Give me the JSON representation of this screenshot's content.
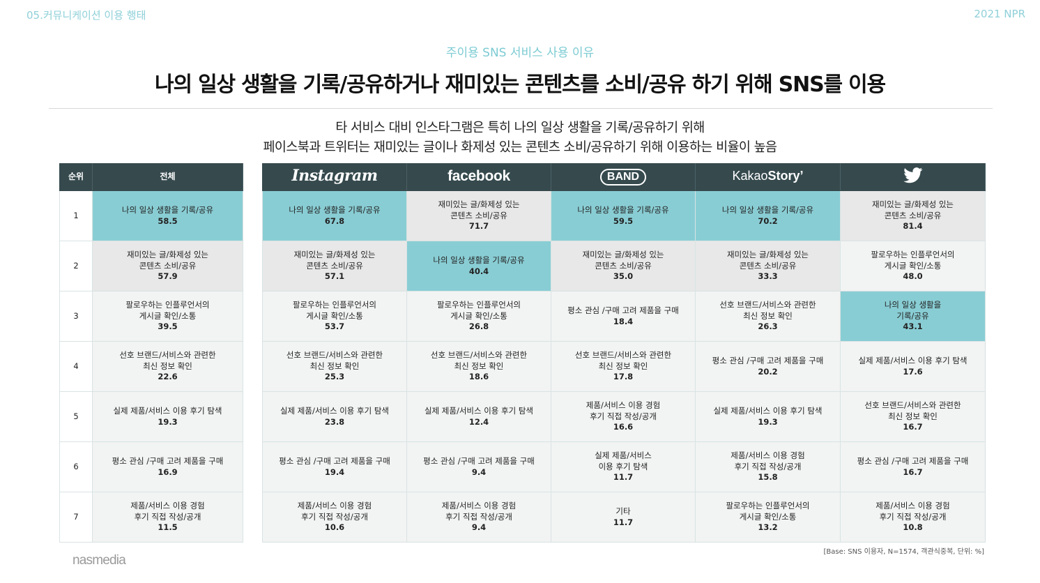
{
  "header": {
    "section": "05.커뮤니케이션 이용 행태",
    "year": "2021 NPR"
  },
  "subtitle": "주이용 SNS 서비스 사용 이유",
  "headline": "나의 일상 생활을 기록/공유하거나 재미있는 콘텐츠를 소비/공유 하기 위해 SNS를 이용",
  "description": [
    "타 서비스 대비 인스타그램은 특히 나의 일상 생활을 기록/공유하기 위해",
    "페이스북과 트위터는 재미있는 글이나 화제성 있는 콘텐츠 소비/공유하기 위해 이용하는 비율이 높음"
  ],
  "left_table": {
    "headers": {
      "rank": "순위",
      "total": "전체"
    },
    "rows": [
      {
        "rank": "1",
        "label": "나의 일상 생활을 기록/공유",
        "value": "58.5",
        "style": "hl"
      },
      {
        "rank": "2",
        "label": "재미있는 글/화제성 있는\n콘텐츠 소비/공유",
        "value": "57.9",
        "style": "gray"
      },
      {
        "rank": "3",
        "label": "팔로우하는 인플루언서의\n게시글 확인/소통",
        "value": "39.5",
        "style": ""
      },
      {
        "rank": "4",
        "label": "선호 브랜드/서비스와 관련한\n최신 정보 확인",
        "value": "22.6",
        "style": ""
      },
      {
        "rank": "5",
        "label": "실제 제품/서비스 이용 후기 탐색",
        "value": "19.3",
        "style": ""
      },
      {
        "rank": "6",
        "label": "평소 관심 /구매 고려 제품을 구매",
        "value": "16.9",
        "style": ""
      },
      {
        "rank": "7",
        "label": "제품/서비스 이용 경험\n후기 직접 작성/공개",
        "value": "11.5",
        "style": ""
      }
    ]
  },
  "right_table": {
    "headers": [
      {
        "name": "Instagram",
        "icon": "instagram-logo"
      },
      {
        "name": "facebook",
        "icon": "facebook-logo"
      },
      {
        "name": "BAND",
        "icon": "band-logo"
      },
      {
        "name_a": "Kakao",
        "name_b": "Story",
        "icon": "kakaostory-logo"
      },
      {
        "name": "",
        "icon": "twitter-bird-icon"
      }
    ],
    "rows": [
      [
        {
          "label": "나의 일상 생활을 기록/공유",
          "value": "67.8",
          "style": "hl"
        },
        {
          "label": "재미있는 글/화제성 있는\n콘텐츠 소비/공유",
          "value": "71.7",
          "style": "gray"
        },
        {
          "label": "나의 일상 생활을 기록/공유",
          "value": "59.5",
          "style": "hl"
        },
        {
          "label": "나의 일상 생활을 기록/공유",
          "value": "70.2",
          "style": "hl"
        },
        {
          "label": "재미있는 글/화제성 있는\n콘텐츠 소비/공유",
          "value": "81.4",
          "style": "gray"
        }
      ],
      [
        {
          "label": "재미있는 글/화제성 있는\n콘텐츠 소비/공유",
          "value": "57.1",
          "style": "gray"
        },
        {
          "label": "나의 일상 생활을 기록/공유",
          "value": "40.4",
          "style": "hl"
        },
        {
          "label": "재미있는 글/화제성 있는\n콘텐츠 소비/공유",
          "value": "35.0",
          "style": "gray"
        },
        {
          "label": "재미있는 글/화제성 있는\n콘텐츠 소비/공유",
          "value": "33.3",
          "style": "gray"
        },
        {
          "label": "팔로우하는 인플루언서의\n게시글 확인/소통",
          "value": "48.0",
          "style": ""
        }
      ],
      [
        {
          "label": "팔로우하는 인플루언서의\n게시글 확인/소통",
          "value": "53.7",
          "style": ""
        },
        {
          "label": "팔로우하는 인플루언서의\n게시글 확인/소통",
          "value": "26.8",
          "style": ""
        },
        {
          "label": "평소 관심 /구매 고려 제품을 구매",
          "value": "18.4",
          "style": ""
        },
        {
          "label": "선호 브랜드/서비스와 관련한\n최신 정보 확인",
          "value": "26.3",
          "style": ""
        },
        {
          "label": "나의 일상 생활을\n기록/공유",
          "value": "43.1",
          "style": "hl"
        }
      ],
      [
        {
          "label": "선호 브랜드/서비스와 관련한\n최신 정보 확인",
          "value": "25.3",
          "style": ""
        },
        {
          "label": "선호 브랜드/서비스와 관련한\n최신 정보 확인",
          "value": "18.6",
          "style": ""
        },
        {
          "label": "선호 브랜드/서비스와 관련한\n최신 정보 확인",
          "value": "17.8",
          "style": ""
        },
        {
          "label": "평소 관심 /구매 고려 제품을 구매",
          "value": "20.2",
          "style": ""
        },
        {
          "label": "실제 제품/서비스 이용 후기 탐색",
          "value": "17.6",
          "style": ""
        }
      ],
      [
        {
          "label": "실제 제품/서비스 이용 후기 탐색",
          "value": "23.8",
          "style": ""
        },
        {
          "label": "실제 제품/서비스 이용 후기 탐색",
          "value": "12.4",
          "style": ""
        },
        {
          "label": "제품/서비스 이용 경험\n후기 직접 작성/공개",
          "value": "16.6",
          "style": ""
        },
        {
          "label": "실제 제품/서비스 이용 후기 탐색",
          "value": "19.3",
          "style": ""
        },
        {
          "label": "선호 브랜드/서비스와 관련한\n최신 정보 확인",
          "value": "16.7",
          "style": ""
        }
      ],
      [
        {
          "label": "평소 관심 /구매 고려 제품을 구매",
          "value": "19.4",
          "style": ""
        },
        {
          "label": "평소 관심 /구매 고려 제품을 구매",
          "value": "9.4",
          "style": ""
        },
        {
          "label": "실제 제품/서비스\n이용 후기 탐색",
          "value": "11.7",
          "style": ""
        },
        {
          "label": "제품/서비스 이용 경험\n후기 직접 작성/공개",
          "value": "15.8",
          "style": ""
        },
        {
          "label": "평소 관심 /구매 고려 제품을 구매",
          "value": "16.7",
          "style": ""
        }
      ],
      [
        {
          "label": "제품/서비스 이용 경험\n후기 직접 작성/공개",
          "value": "10.6",
          "style": ""
        },
        {
          "label": "제품/서비스 이용 경험\n후기 직접 작성/공개",
          "value": "9.4",
          "style": ""
        },
        {
          "label": "기타",
          "value": "11.7",
          "style": ""
        },
        {
          "label": "팔로우하는 인플루언서의\n게시글 확인/소통",
          "value": "13.2",
          "style": ""
        },
        {
          "label": "제품/서비스 이용 경험\n후기 직접 작성/공개",
          "value": "10.8",
          "style": ""
        }
      ]
    ]
  },
  "base_note": "[Base: SNS 이용자, N=1574, 객관식중복, 단위: %]",
  "brand": "nasmedia",
  "colors": {
    "accent": "#89cdd4",
    "header_bg": "#364a4e",
    "gray_cell": "#e8e8e8",
    "cell_bg": "#f2f3f3"
  }
}
